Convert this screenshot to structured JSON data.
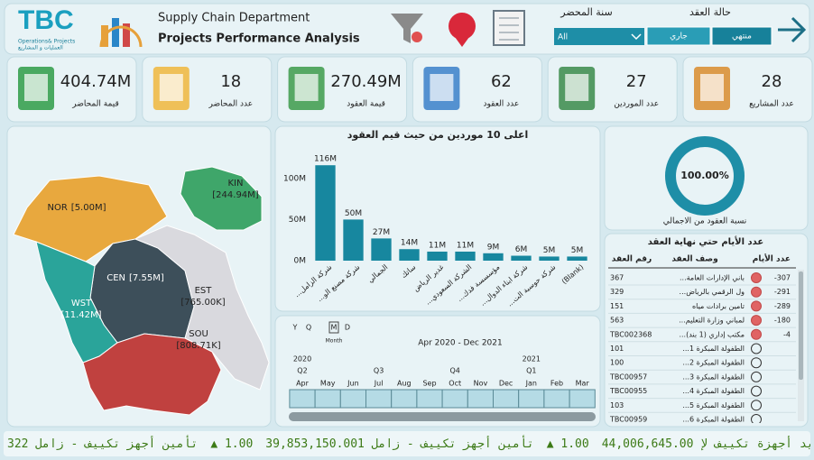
{
  "header": {
    "logo": "TBC",
    "logo_en": "Operations& Projects",
    "logo_ar": "العمليات و المشاريع",
    "department": "Supply Chain Department",
    "report": "Projects Performance Analysis",
    "year_filter": {
      "label": "سنة المحضر",
      "value": "All"
    },
    "status_filter": {
      "label": "حالة العقد",
      "options": [
        "جاري",
        "منتهي"
      ]
    }
  },
  "kpis": [
    {
      "value": "404.74M",
      "label": "قيمة المحاضر"
    },
    {
      "value": "18",
      "label": "عدد المحاضر"
    },
    {
      "value": "270.49M",
      "label": "قيمة العقود"
    },
    {
      "value": "62",
      "label": "عدد العقود"
    },
    {
      "value": "27",
      "label": "عدد الموردين"
    },
    {
      "value": "28",
      "label": "عدد المشاريع"
    }
  ],
  "map": {
    "regions": [
      {
        "code": "NOR",
        "value": "[5.00M]"
      },
      {
        "code": "KIN",
        "value": "[244.94M]"
      },
      {
        "code": "CEN",
        "value": "[7.55M]"
      },
      {
        "code": "EST",
        "value": "[765.00K]"
      },
      {
        "code": "WST",
        "value": "[11.42M]"
      },
      {
        "code": "SOU",
        "value": "[808.71K]"
      }
    ]
  },
  "chart_data": {
    "type": "bar",
    "title": "اعلى 10 موردين من حيث قيم العقود",
    "categories": [
      "...شركة الزامل",
      "...شركة مصنع الو",
      "الجمالي",
      "ساتك",
      "غدير الرياض",
      "...الشركة السعودي",
      "...مؤسسسة فدك",
      "...شركة ابناء الدوال",
      "...شركة حوسبة الت",
      "(Blank)"
    ],
    "values": [
      116000000,
      50000000,
      27000000,
      14000000,
      11000000,
      11000000,
      9000000,
      6000000,
      5000000,
      5000000
    ],
    "value_labels": [
      "116M",
      "50M",
      "27M",
      "14M",
      "11M",
      "11M",
      "9M",
      "6M",
      "5M",
      "5M"
    ],
    "color": "#17879f",
    "ylim": [
      0,
      125000000
    ],
    "yticks": [
      {
        "value": 0,
        "label": "0M"
      },
      {
        "value": 50000000,
        "label": "50M"
      },
      {
        "value": 100000000,
        "label": "100M"
      }
    ],
    "grid": false
  },
  "gauge": {
    "value": 100,
    "label": "100.00%",
    "caption": "نسبة العقود من الاجمالي"
  },
  "timeline": {
    "levels": [
      "Y",
      "Q",
      "M",
      "D"
    ],
    "level": "Month",
    "range": "Apr 2020 - Dec 2021",
    "years": [
      "2020",
      "2021"
    ],
    "quarters": [
      "Q2",
      "Q3",
      "Q4",
      "Q1"
    ],
    "months": [
      "Apr",
      "May",
      "Jun",
      "Jul",
      "Aug",
      "Sep",
      "Oct",
      "Nov",
      "Dec",
      "Jan",
      "Feb",
      "Mar"
    ]
  },
  "table": {
    "title": "عدد الأيام حتي نهاية العقد",
    "columns": [
      "عدد الأيام",
      "وصف العقد",
      "رقم العقد"
    ],
    "rows": [
      [
        -307,
        "...باني الإدارات العامة",
        "367"
      ],
      [
        -291,
        "...ول الرقمي بالرياض",
        "329"
      ],
      [
        -289,
        "تامين برادات مياه",
        "151"
      ],
      [
        -180,
        "...لمباني وزارة التعليم",
        "563"
      ],
      [
        -4,
        "...مكتب إداري (1 بند)",
        "TBC002368"
      ],
      [
        null,
        "...الطفولة المبكرة 1",
        "101"
      ],
      [
        null,
        "...الطفولة المبكرة 2",
        "100"
      ],
      [
        null,
        "...الطفولة المبكرة 3",
        "TBC00957"
      ],
      [
        null,
        "...الطفولة المبكرة 4",
        "TBC00955"
      ],
      [
        null,
        "...الطفولة المبكرة 5",
        "103"
      ],
      [
        null,
        "...الطفولة المبكرة 6",
        "TBC00959"
      ]
    ]
  },
  "ticker": [
    "32تأمين أجهز تكييف - زامل 2",
    "▲ 1.00",
    "39,853,150.00تأمين أجهز تكييف - زامل 1",
    "▲ 1.00",
    "44,006,645.00 تصنيع وتوريد أجهزة تكييف لإ"
  ]
}
